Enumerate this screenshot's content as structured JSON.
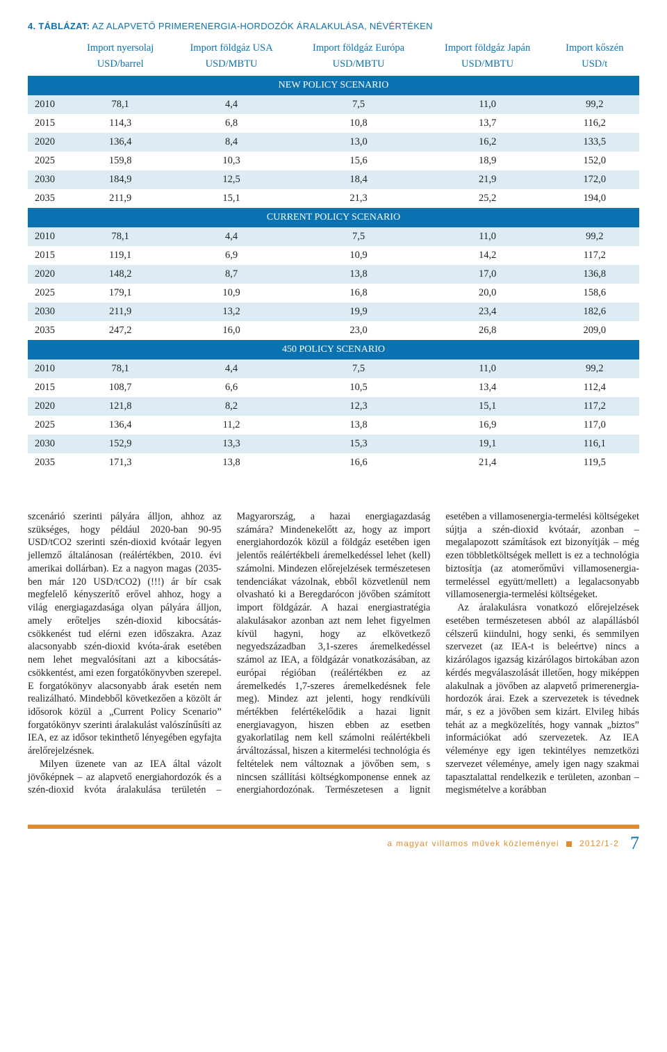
{
  "caption_prefix": "4. TÁBLÁZAT:",
  "caption_rest": " AZ ALAPVETŐ PRIMERENERGIA-HORDOZÓK ÁRALAKULÁSA, NÉVÉRTÉKEN",
  "columns": [
    {
      "h1": "",
      "h2": ""
    },
    {
      "h1": "Import nyersolaj",
      "h2": "USD/barrel"
    },
    {
      "h1": "Import földgáz USA",
      "h2": "USD/MBTU"
    },
    {
      "h1": "Import földgáz Európa",
      "h2": "USD/MBTU"
    },
    {
      "h1": "Import földgáz Japán",
      "h2": "USD/MBTU"
    },
    {
      "h1": "Import kőszén",
      "h2": "USD/t"
    }
  ],
  "sections": [
    {
      "title": "NEW POLICY SCENARIO",
      "rows": [
        [
          "2010",
          "78,1",
          "4,4",
          "7,5",
          "11,0",
          "99,2"
        ],
        [
          "2015",
          "114,3",
          "6,8",
          "10,8",
          "13,7",
          "116,2"
        ],
        [
          "2020",
          "136,4",
          "8,4",
          "13,0",
          "16,2",
          "133,5"
        ],
        [
          "2025",
          "159,8",
          "10,3",
          "15,6",
          "18,9",
          "152,0"
        ],
        [
          "2030",
          "184,9",
          "12,5",
          "18,4",
          "21,9",
          "172,0"
        ],
        [
          "2035",
          "211,9",
          "15,1",
          "21,3",
          "25,2",
          "194,0"
        ]
      ]
    },
    {
      "title": "CURRENT POLICY SCENARIO",
      "rows": [
        [
          "2010",
          "78,1",
          "4,4",
          "7,5",
          "11,0",
          "99,2"
        ],
        [
          "2015",
          "119,1",
          "6,9",
          "10,9",
          "14,2",
          "117,2"
        ],
        [
          "2020",
          "148,2",
          "8,7",
          "13,8",
          "17,0",
          "136,8"
        ],
        [
          "2025",
          "179,1",
          "10,9",
          "16,8",
          "20,0",
          "158,6"
        ],
        [
          "2030",
          "211,9",
          "13,2",
          "19,9",
          "23,4",
          "182,6"
        ],
        [
          "2035",
          "247,2",
          "16,0",
          "23,0",
          "26,8",
          "209,0"
        ]
      ]
    },
    {
      "title": "450 POLICY SCENARIO",
      "rows": [
        [
          "2010",
          "78,1",
          "4,4",
          "7,5",
          "11,0",
          "99,2"
        ],
        [
          "2015",
          "108,7",
          "6,6",
          "10,5",
          "13,4",
          "112,4"
        ],
        [
          "2020",
          "121,8",
          "8,2",
          "12,3",
          "15,1",
          "117,2"
        ],
        [
          "2025",
          "136,4",
          "11,2",
          "13,8",
          "16,9",
          "117,0"
        ],
        [
          "2030",
          "152,9",
          "13,3",
          "15,3",
          "19,1",
          "116,1"
        ],
        [
          "2035",
          "171,3",
          "13,8",
          "16,6",
          "21,4",
          "119,5"
        ]
      ]
    }
  ],
  "body": {
    "p1": "szcenárió szerinti pályára álljon, ahhoz az szükséges, hogy például 2020-ban 90-95 USD/tCO2 szerinti szén-dioxid kvótaár legyen jellemző általánosan (reálértékben, 2010. évi amerikai dollárban). Ez a nagyon magas (2035-ben már 120 USD/tCO2) (!!!) ár bír csak megfelelő kényszerítő erővel ahhoz, hogy a világ energiagazdasága olyan pályára álljon, amely erőteljes szén-dioxid kibocsátás-csökkenést tud elérni ezen időszakra. Azaz alacsonyabb szén-dioxid kvóta-árak esetében nem lehet megvalósítani azt a kibocsátás-csökkentést, ami ezen forgatókönyvben szerepel. E forgatókönyv alacsonyabb árak esetén nem realizálható. Mindebből következően a közölt ár idősorok közül a „Current Policy Scenario” forgatókönyv szerinti áralakulást valószínűsíti az IEA, ez az idősor tekinthető lényegében egyfajta árelőrejelzésnek.",
    "p2": "Milyen üzenete van az IEA által vázolt jövőképnek – az alapvető energiahordozók és a szén-dioxid kvóta áralakulása területén – Magyarország, a hazai energiagazdaság számára? Mindenekelőtt az, hogy az import energiahordozók közül a földgáz esetében igen jelentős reálértékbeli áremelkedéssel lehet (kell) számolni. Mindezen előrejelzések természetesen tendenciákat vázolnak, ebből közvetlenül nem olvasható ki a Beregdarócon jövőben számított import földgázár. A hazai energiastratégia alakulásakor azonban azt nem lehet figyelmen kívül hagyni, hogy az elkövetkező negyedszázadban 3,1-szeres áremelkedéssel számol az IEA, a földgázár vonatkozásában, az európai régióban (reálértékben ez az áremelkedés 1,7-szeres áremelkedésnek fele meg). Mindez azt jelenti, hogy rendkívüli mértékben felértékelődik a hazai lignit energiavagyon, hiszen ebben az esetben gyakorlatilag nem kell számolni reálértékbeli árváltozással, hiszen a kitermelési technológia és feltételek nem változnak a jövőben sem, s nincsen szállítási költségkomponense ennek az energiahordozónak. Természetesen a lignit esetében a villamosenergia-termelési költségeket sújtja a szén-dioxid kvótaár, azonban – megalapozott számítások ezt bizonyítják – még ezen többletköltségek mellett is ez a technológia biztosítja (az atomerőművi villamosenergia-termeléssel együtt/mellett) a legalacsonyabb villamosenergia-termelési költségeket.",
    "p3": "Az áralakulásra vonatkozó előrejelzések esetében természetesen abból az alapállásból célszerű kiindulni, hogy senki, és semmilyen szervezet (az IEA-t is beleértve) nincs a kizárólagos igazság kizárólagos birtokában azon kérdés megválaszolását illetően, hogy miképpen alakulnak a jövőben az alapvető primerenergia-hordozók árai. Ezek a szervezetek is tévednek már, s ez a jövőben sem kizárt. Elvileg hibás tehát az a megközelítés, hogy vannak „biztos” információkat adó szervezetek. Az IEA véleménye egy igen tekintélyes nemzetközi szervezet véleménye, amely igen nagy szakmai tapasztalattal rendelkezik e területen, azonban – megismételve a korábban"
  },
  "footer": {
    "text": "a magyar villamos művek közleményei",
    "issue": "2012/1-2",
    "page": "7"
  },
  "colors": {
    "accent_blue": "#0a72b0",
    "accent_orange": "#e28b2e",
    "row_odd": "#dcebf4",
    "row_even": "#ffffff"
  }
}
